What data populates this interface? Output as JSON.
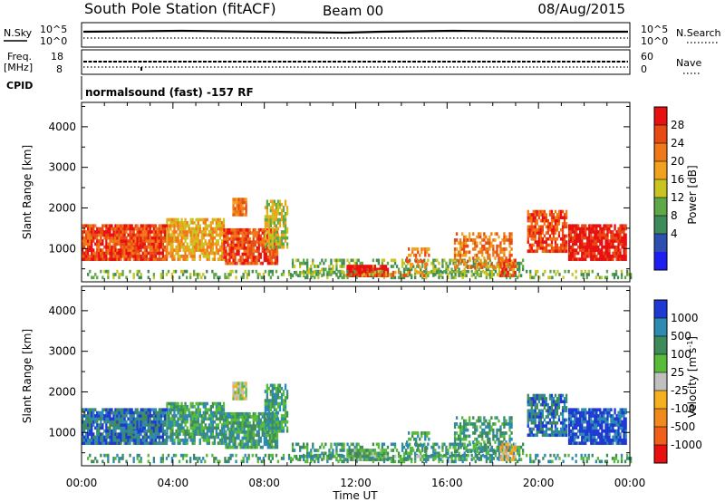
{
  "header": {
    "station": "South Pole Station (fitACF)",
    "beam": "Beam 00",
    "date": "08/Aug/2015"
  },
  "noise_panel": {
    "left_label": "N.Sky",
    "right_label": "N.Search",
    "left_ticks": [
      "10^5",
      "10^0"
    ],
    "right_ticks": [
      "10^5",
      "10^0"
    ]
  },
  "freq_panel": {
    "left_label_1": "Freq.",
    "left_label_2": "[MHz]",
    "right_label": "Nave",
    "left_ticks": [
      "18",
      "8"
    ],
    "right_ticks": [
      "60",
      "0"
    ]
  },
  "cpid_panel": {
    "label": "CPID",
    "text": "normalsound (fast) -157 RF"
  },
  "colors": {
    "power": [
      "#1e1ef0",
      "#2e4fb0",
      "#3f8a5a",
      "#5fa848",
      "#c9c420",
      "#f0a21e",
      "#f07818",
      "#e84a14",
      "#e81010"
    ],
    "velocity": [
      "#e81010",
      "#f06018",
      "#f08a1c",
      "#f5b020",
      "#c0c0c0",
      "#58bc38",
      "#3f8a5a",
      "#2e8ab0",
      "#1e3ad2"
    ]
  },
  "chart_data": [
    {
      "type": "heatmap",
      "name": "power",
      "ylabel": "Slant Range [km]",
      "yticks": [
        "1000",
        "2000",
        "3000",
        "4000"
      ],
      "ylim": [
        180,
        4600
      ],
      "xlim": [
        0,
        24
      ],
      "colorbar_label": "Power [dB]",
      "colorbar_ticks": [
        "4",
        "8",
        "12",
        "16",
        "20",
        "24",
        "28"
      ],
      "colorbar_range": [
        0,
        32
      ]
    },
    {
      "type": "heatmap",
      "name": "velocity",
      "ylabel": "Slant Range [km]",
      "yticks": [
        "1000",
        "2000",
        "3000",
        "4000"
      ],
      "ylim": [
        180,
        4600
      ],
      "xlim": [
        0,
        24
      ],
      "xlabel": "Time UT",
      "xticks": [
        "00:00",
        "04:00",
        "08:00",
        "12:00",
        "16:00",
        "20:00",
        "00:00"
      ],
      "colorbar_label": "Velocity [m s",
      "colorbar_label_sup": "-1",
      "colorbar_label_end": "]",
      "colorbar_ticks": [
        "1000",
        "500",
        "100",
        "25",
        "-25",
        "-100",
        "-500",
        "-1000"
      ]
    }
  ]
}
